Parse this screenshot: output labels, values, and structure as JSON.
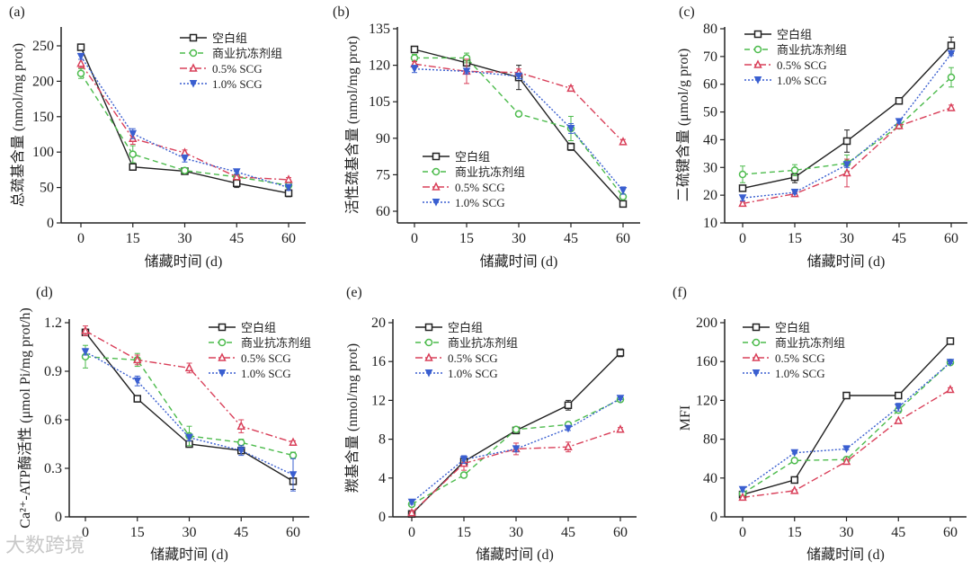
{
  "watermark": "大数跨境",
  "legend_labels": [
    "空白组",
    "商业抗冻剂组",
    "0.5% SCG",
    "1.0% SCG"
  ],
  "series_styles": [
    {
      "color": "#222222",
      "dash": "solid",
      "marker": "square"
    },
    {
      "color": "#4cbb4c",
      "dash": "dashed",
      "marker": "circle"
    },
    {
      "color": "#d9405a",
      "dash": "dashdot",
      "marker": "triangle-up"
    },
    {
      "color": "#3a5fd0",
      "dash": "dotted",
      "marker": "triangle-down"
    }
  ],
  "chart_data": [
    {
      "panel": "(a)",
      "type": "line",
      "xlabel": "储藏时间 (d)",
      "ylabel": "总巯基含量 (nmol/mg prot)",
      "x": [
        0,
        15,
        30,
        45,
        60
      ],
      "ylim": [
        0,
        250
      ],
      "yticks": [
        0,
        50,
        100,
        150,
        200,
        250
      ],
      "legend": "top-right",
      "series": [
        {
          "name": "空白组",
          "values": [
            248,
            79,
            73,
            56,
            42
          ],
          "errors": [
            2,
            4,
            3,
            6,
            5
          ]
        },
        {
          "name": "商业抗冻剂组",
          "values": [
            211,
            97,
            74,
            65,
            53
          ],
          "errors": [
            7,
            12,
            4,
            3,
            3
          ]
        },
        {
          "name": "0.5% SCG",
          "values": [
            225,
            119,
            99,
            65,
            61
          ],
          "errors": [
            6,
            8,
            4,
            3,
            3
          ]
        },
        {
          "name": "1.0% SCG",
          "values": [
            235,
            126,
            91,
            72,
            50
          ],
          "errors": [
            4,
            7,
            5,
            3,
            4
          ]
        }
      ]
    },
    {
      "panel": "(b)",
      "type": "line",
      "xlabel": "储藏时间 (d)",
      "ylabel": "活性巯基含量 (nmol/mg prot)",
      "x": [
        0,
        15,
        30,
        45,
        60
      ],
      "ylim": [
        60,
        135
      ],
      "yticks": [
        60,
        75,
        90,
        105,
        120,
        135
      ],
      "legend": "bottom-left",
      "series": [
        {
          "name": "空白组",
          "values": [
            126.5,
            121,
            115,
            86.5,
            63
          ],
          "errors": [
            0.5,
            1,
            5,
            1.5,
            0.5
          ]
        },
        {
          "name": "商业抗冻剂组",
          "values": [
            123,
            123,
            100,
            94,
            66
          ],
          "errors": [
            1.5,
            2,
            1,
            5,
            1
          ]
        },
        {
          "name": "0.5% SCG",
          "values": [
            120.5,
            117.5,
            117,
            110.5,
            88.5
          ],
          "errors": [
            1,
            5,
            1.5,
            1,
            1
          ]
        },
        {
          "name": "1.0% SCG",
          "values": [
            118.5,
            117.5,
            115.5,
            94,
            68.5
          ],
          "errors": [
            1.5,
            1,
            1,
            2,
            1.5
          ]
        }
      ]
    },
    {
      "panel": "(c)",
      "type": "line",
      "xlabel": "储藏时间 (d)",
      "ylabel": "二硫键含量 (μmol/g prot)",
      "x": [
        0,
        15,
        30,
        45,
        60
      ],
      "ylim": [
        10,
        80
      ],
      "yticks": [
        10,
        20,
        30,
        40,
        50,
        60,
        70,
        80
      ],
      "legend": "top-left",
      "series": [
        {
          "name": "空白组",
          "values": [
            22.5,
            26.5,
            39.5,
            54,
            74
          ],
          "errors": [
            1,
            2,
            4,
            0.5,
            3
          ]
        },
        {
          "name": "商业抗冻剂组",
          "values": [
            27.5,
            29,
            31.5,
            45,
            62.5
          ],
          "errors": [
            3,
            2,
            3,
            0.5,
            3.5
          ]
        },
        {
          "name": "0.5% SCG",
          "values": [
            17,
            20.5,
            28,
            45,
            51.5
          ],
          "errors": [
            0.7,
            0.5,
            5,
            0.5,
            1
          ]
        },
        {
          "name": "1.0% SCG",
          "values": [
            19,
            21,
            31,
            46.5,
            71
          ],
          "errors": [
            1,
            0.5,
            1,
            0.5,
            0.7
          ]
        }
      ]
    },
    {
      "panel": "(d)",
      "type": "line",
      "xlabel": "储藏时间 (d)",
      "ylabel": "Ca²⁺-ATP酶活性 (μmol Pi/mg prot/h)",
      "x": [
        0,
        15,
        30,
        45,
        60
      ],
      "ylim": [
        0,
        1.2
      ],
      "yticks": [
        0,
        0.3,
        0.6,
        0.9,
        1.2
      ],
      "legend": "top-right",
      "series": [
        {
          "name": "空白组",
          "values": [
            1.14,
            0.73,
            0.45,
            0.41,
            0.22
          ],
          "errors": [
            0.02,
            0.02,
            0.02,
            0.02,
            0.05
          ]
        },
        {
          "name": "商业抗冻剂组",
          "values": [
            0.99,
            0.97,
            0.5,
            0.46,
            0.38
          ],
          "errors": [
            0.07,
            0.04,
            0.06,
            0.02,
            0.02
          ]
        },
        {
          "name": "0.5% SCG",
          "values": [
            1.15,
            0.97,
            0.92,
            0.56,
            0.46
          ],
          "errors": [
            0.03,
            0.03,
            0.03,
            0.04,
            0.01
          ]
        },
        {
          "name": "1.0% SCG",
          "values": [
            1.02,
            0.84,
            0.49,
            0.41,
            0.26
          ],
          "errors": [
            0.02,
            0.03,
            0.02,
            0.03,
            0.1
          ]
        }
      ]
    },
    {
      "panel": "(e)",
      "type": "line",
      "xlabel": "储藏时间 (d)",
      "ylabel": "羰基含量 (nmol/mg prot)",
      "x": [
        0,
        15,
        30,
        45,
        60
      ],
      "ylim": [
        0,
        20
      ],
      "yticks": [
        0,
        4,
        8,
        12,
        16,
        20
      ],
      "legend": "top-left",
      "series": [
        {
          "name": "空白组",
          "values": [
            0.3,
            5.7,
            8.9,
            11.5,
            16.9
          ],
          "errors": [
            0.1,
            0.4,
            0.2,
            0.5,
            0.4
          ]
        },
        {
          "name": "商业抗冻剂组",
          "values": [
            1.3,
            4.3,
            9.0,
            9.5,
            12.1
          ],
          "errors": [
            0.1,
            0.2,
            0.2,
            0.2,
            0.1
          ]
        },
        {
          "name": "0.5% SCG",
          "values": [
            0.4,
            5.5,
            7.0,
            7.2,
            9.0
          ],
          "errors": [
            0.1,
            0.7,
            0.6,
            0.5,
            0.2
          ]
        },
        {
          "name": "1.0% SCG",
          "values": [
            1.5,
            5.9,
            7.0,
            9.1,
            12.2
          ],
          "errors": [
            0.2,
            0.4,
            0.3,
            0.2,
            0.1
          ]
        }
      ]
    },
    {
      "panel": "(f)",
      "type": "line",
      "xlabel": "储藏时间 (d)",
      "ylabel": "MFI",
      "x": [
        0,
        15,
        30,
        45,
        60
      ],
      "ylim": [
        0,
        200
      ],
      "yticks": [
        0,
        40,
        80,
        120,
        160,
        200
      ],
      "legend": "top-left",
      "series": [
        {
          "name": "空白组",
          "values": [
            23,
            38,
            125,
            125,
            181
          ],
          "errors": [
            1,
            1,
            1,
            1,
            1
          ]
        },
        {
          "name": "商业抗冻剂组",
          "values": [
            24,
            58,
            59,
            110,
            159
          ],
          "errors": [
            1,
            2,
            1,
            3,
            1
          ]
        },
        {
          "name": "0.5% SCG",
          "values": [
            20,
            27,
            57,
            99,
            131
          ],
          "errors": [
            1,
            1,
            2,
            1,
            2
          ]
        },
        {
          "name": "1.0% SCG",
          "values": [
            28,
            66,
            70,
            113,
            159
          ],
          "errors": [
            2,
            1,
            1,
            4,
            1
          ]
        }
      ]
    }
  ]
}
